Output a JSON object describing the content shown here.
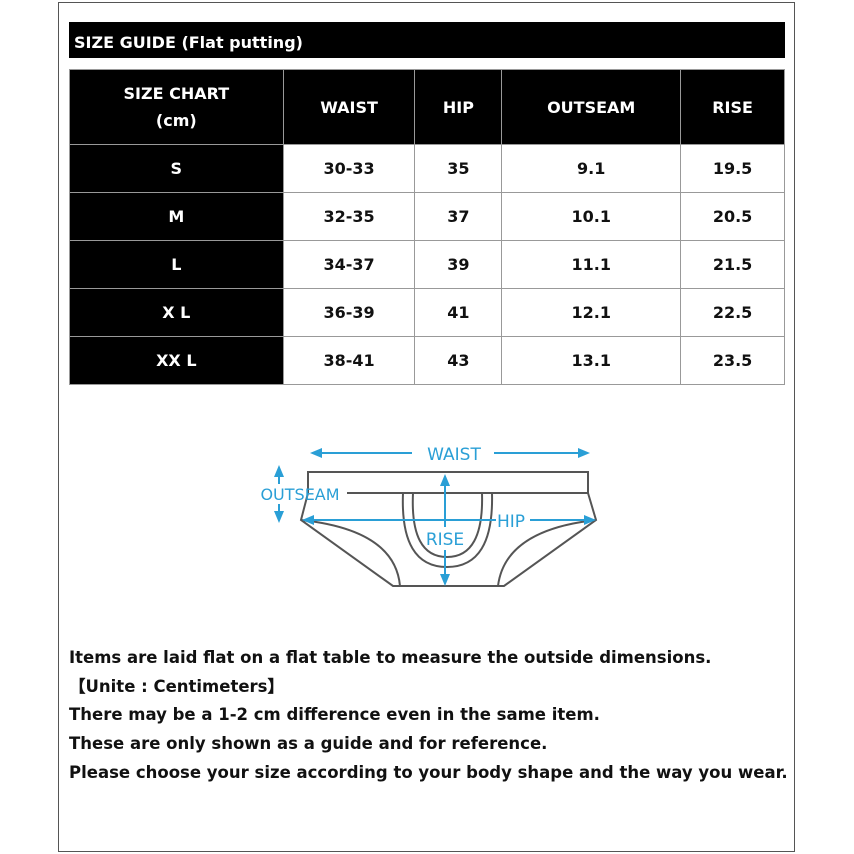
{
  "title": "SIZE GUIDE (Flat putting)",
  "table": {
    "headers": [
      "SIZE CHART (cm)",
      "WAIST",
      "HIP",
      "OUTSEAM",
      "RISE"
    ],
    "header_line1": "SIZE CHART",
    "header_line2": "(cm)",
    "rows": [
      [
        "S",
        "30-33",
        "35",
        "9.1",
        "19.5"
      ],
      [
        "M",
        "32-35",
        "37",
        "10.1",
        "20.5"
      ],
      [
        "L",
        "34-37",
        "39",
        "11.1",
        "21.5"
      ],
      [
        "X L",
        "36-39",
        "41",
        "12.1",
        "22.5"
      ],
      [
        "XX L",
        "38-41",
        "43",
        "13.1",
        "23.5"
      ]
    ]
  },
  "diagram": {
    "labels": {
      "waist": "WAIST",
      "outseam": "OUTSEAM",
      "hip": "HIP",
      "rise": "RISE"
    },
    "arrow_color": "#2a9fd6",
    "outline_color": "#555555"
  },
  "notes": [
    "Items are laid flat on a flat table to measure the outside dimensions.",
    "【Unite : Centimeters】",
    "There may be a 1-2 cm difference even in the same item.",
    "These are only shown as a guide and for reference.",
    "Please choose your size according to your body shape and the way you wear."
  ]
}
